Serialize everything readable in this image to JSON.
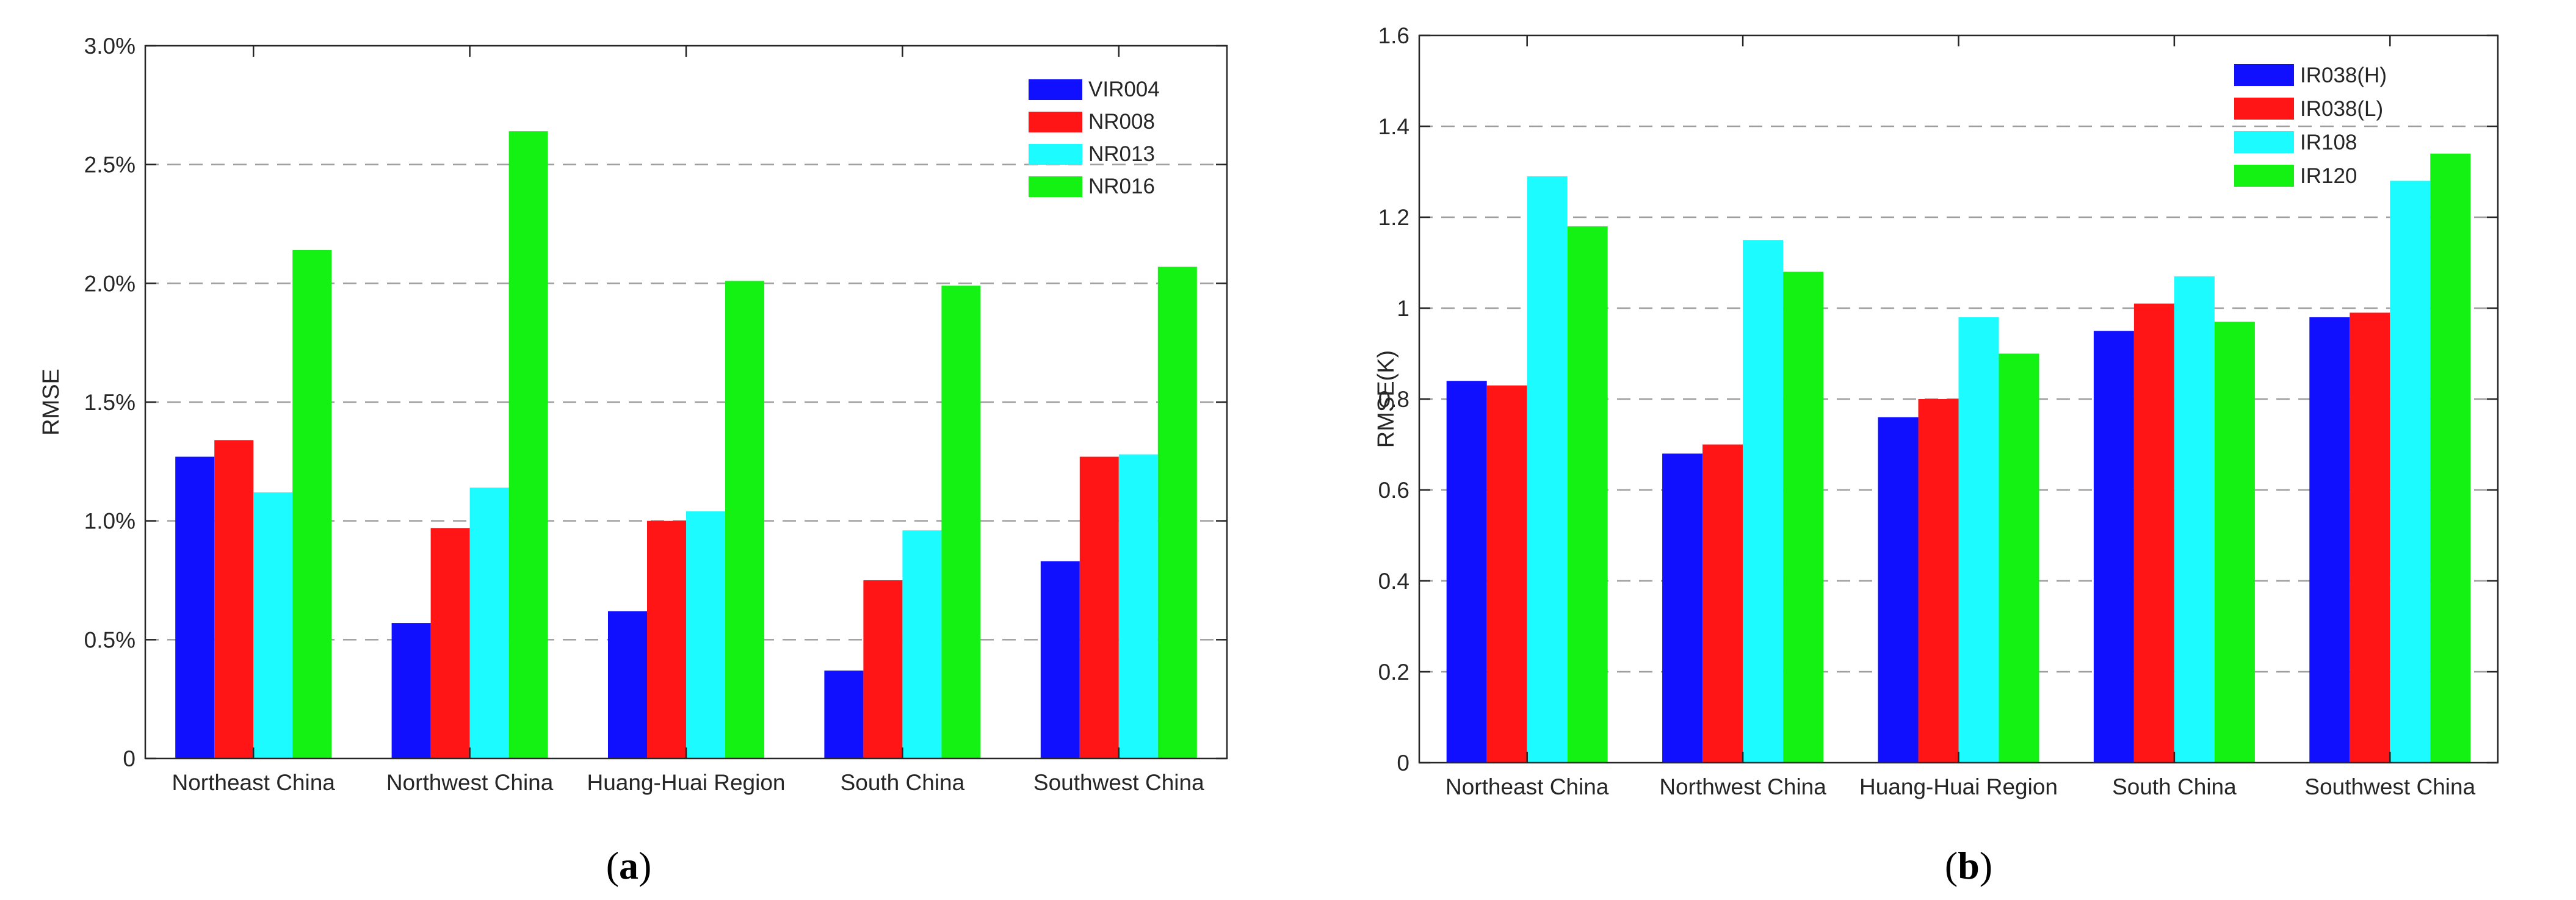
{
  "chart_data": [
    {
      "type": "bar",
      "panel_label": "(a)",
      "panel_letter": "a",
      "title": "",
      "xlabel": "",
      "ylabel": "RMSE",
      "ylim": [
        0,
        3.0
      ],
      "yticks": [
        0,
        0.5,
        1.0,
        1.5,
        2.0,
        2.5,
        3.0
      ],
      "ytick_labels": [
        "0",
        "0.5%",
        "1.0%",
        "1.5%",
        "2.0%",
        "2.5%",
        "3.0%"
      ],
      "grid": "dashed horizontal",
      "legend_position": "top-right",
      "categories": [
        "Northeast China",
        "Northwest China",
        "Huang-Huai Region",
        "South China",
        "Southwest China"
      ],
      "series": [
        {
          "name": "VIR004",
          "color": "#1010FF",
          "values": [
            1.27,
            0.57,
            0.62,
            0.37,
            0.83
          ]
        },
        {
          "name": "NR008",
          "color": "#FF1515",
          "values": [
            1.34,
            0.97,
            1.0,
            0.75,
            1.27
          ]
        },
        {
          "name": "NR013",
          "color": "#1CFBFF",
          "values": [
            1.12,
            1.14,
            1.04,
            0.96,
            1.28
          ]
        },
        {
          "name": "NR016",
          "color": "#14F214",
          "values": [
            2.14,
            2.64,
            2.01,
            1.99,
            2.07
          ]
        }
      ]
    },
    {
      "type": "bar",
      "panel_label": "(b)",
      "panel_letter": "b",
      "title": "",
      "xlabel": "",
      "ylabel": "RMSE(K)",
      "ylim": [
        0,
        1.6
      ],
      "yticks": [
        0,
        0.2,
        0.4,
        0.6,
        0.8,
        1.0,
        1.2,
        1.4,
        1.6
      ],
      "ytick_labels": [
        "0",
        "0.2",
        "0.4",
        "0.6",
        "0.8",
        "1",
        "1.2",
        "1.4",
        "1.6"
      ],
      "grid": "dashed horizontal",
      "legend_position": "top-right",
      "categories": [
        "Northeast China",
        "Northwest China",
        "Huang-Huai Region",
        "South China",
        "Southwest China"
      ],
      "series": [
        {
          "name": "IR038(H)",
          "color": "#1010FF",
          "values": [
            0.84,
            0.68,
            0.76,
            0.95,
            0.98
          ]
        },
        {
          "name": "IR038(L)",
          "color": "#FF1515",
          "values": [
            0.83,
            0.7,
            0.8,
            1.01,
            0.99
          ]
        },
        {
          "name": "IR108",
          "color": "#1CFBFF",
          "values": [
            1.29,
            1.15,
            0.98,
            1.07,
            1.28
          ]
        },
        {
          "name": "IR120",
          "color": "#14F214",
          "values": [
            1.18,
            1.08,
            0.9,
            0.97,
            1.34
          ]
        }
      ]
    }
  ]
}
